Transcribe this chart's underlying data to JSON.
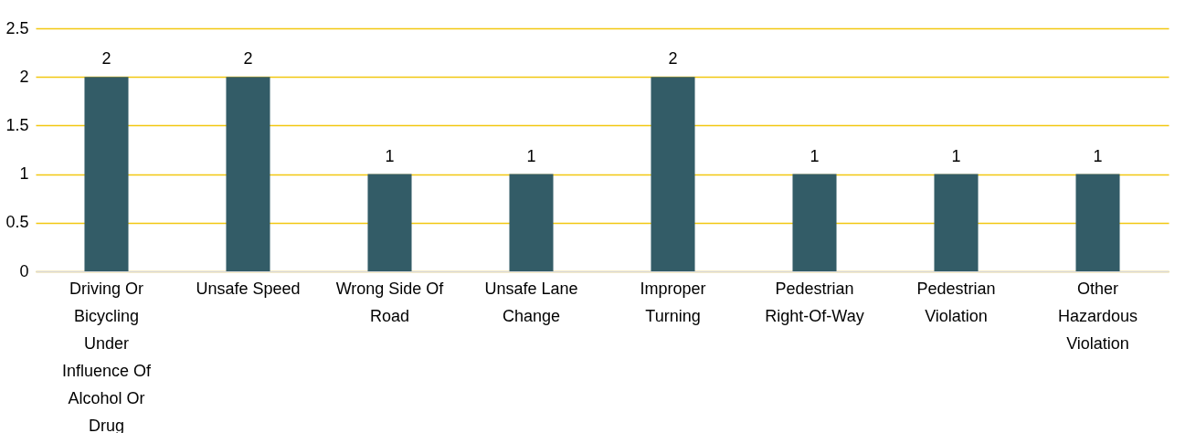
{
  "chart_data": {
    "type": "bar",
    "categories": [
      "Driving Or Bicycling Under Influence Of Alcohol Or Drug",
      "Unsafe Speed",
      "Wrong Side Of Road",
      "Unsafe Lane Change",
      "Improper Turning",
      "Pedestrian Right-Of-Way",
      "Pedestrian Violation",
      "Other Hazardous Violation"
    ],
    "values": [
      2,
      2,
      1,
      1,
      2,
      1,
      1,
      1
    ],
    "color": "#335c67",
    "ylim": [
      0,
      2.5
    ],
    "yticks": [
      0,
      0.5,
      1,
      1.5,
      2,
      2.5
    ],
    "grid": "y",
    "data_labels": true
  }
}
